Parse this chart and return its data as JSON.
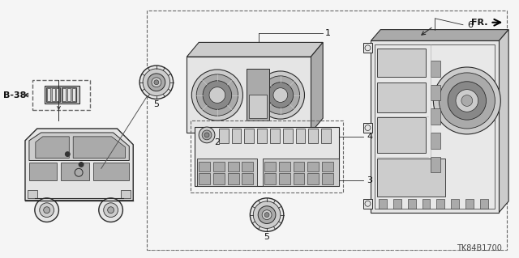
{
  "bg_color": "#f5f5f5",
  "line_color": "#2a2a2a",
  "dark_fill": "#888888",
  "mid_fill": "#aaaaaa",
  "light_fill": "#cccccc",
  "very_light_fill": "#e5e5e5",
  "dashed_color": "#666666",
  "text_color": "#111111",
  "diagram_code": "TK84B1700",
  "fr_label": "FR.",
  "b38_label": "B-38",
  "parts": [
    "1",
    "2",
    "3",
    "4",
    "5",
    "5",
    "6"
  ]
}
